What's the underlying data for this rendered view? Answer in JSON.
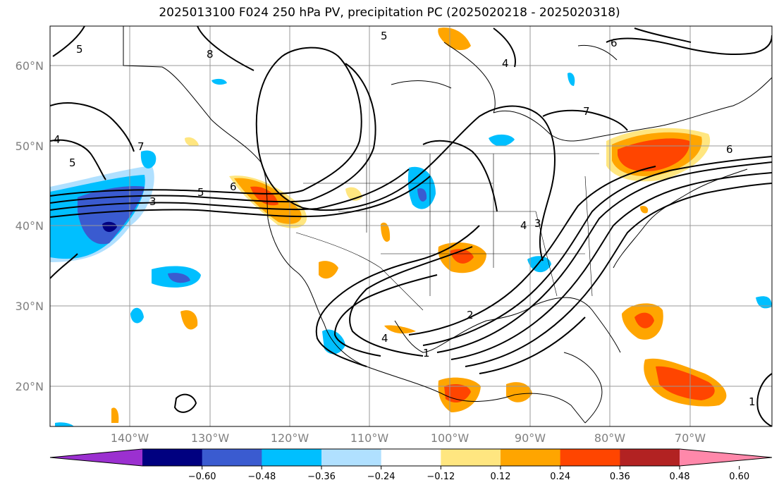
{
  "title": "2025013100 F024 250 hPa PV, precipitation PC (2025020218 - 2025020318)",
  "lat_labels": [
    "60°N",
    "50°N",
    "40°N",
    "30°N",
    "20°N"
  ],
  "lon_labels": [
    "140°W",
    "130°W",
    "120°W",
    "110°W",
    "100°W",
    "90°W",
    "80°W",
    "70°W"
  ],
  "colorbar": {
    "ticks": [
      "−0.60",
      "−0.48",
      "−0.36",
      "−0.24",
      "−0.12",
      "0.12",
      "0.24",
      "0.36",
      "0.48",
      "0.60"
    ],
    "colors": [
      "#9b30d0",
      "#000080",
      "#3a5bd0",
      "#00bfff",
      "#b0e0ff",
      "#ffffff",
      "#ffe680",
      "#ffa500",
      "#ff4500",
      "#b22222",
      "#ff88aa"
    ]
  },
  "contour_labels": [
    "5",
    "8",
    "4",
    "6",
    "7",
    "5",
    "3",
    "5",
    "6",
    "4",
    "4",
    "1",
    "2",
    "3",
    "1",
    "6",
    "5",
    "4",
    "7"
  ],
  "colors": {
    "negative_strong": "#000080",
    "negative_mid": "#3a5bd0",
    "negative_light": "#00bfff",
    "negative_faint": "#b0e0ff",
    "positive_faint": "#ffe680",
    "positive_light": "#ffa500",
    "positive_mid": "#ff4500",
    "positive_strong": "#b22222"
  }
}
